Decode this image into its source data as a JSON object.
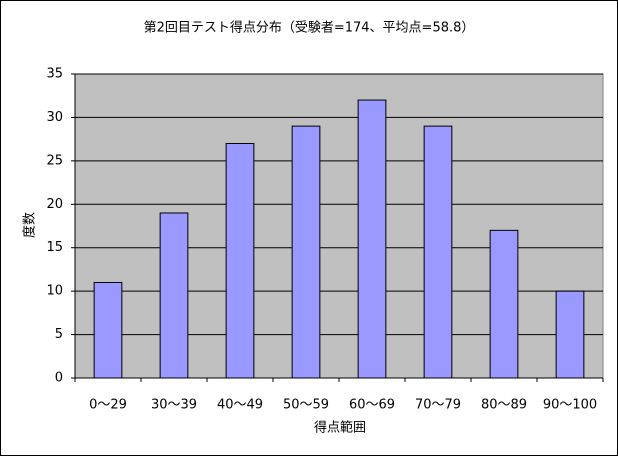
{
  "chart_data": {
    "type": "bar",
    "title": "第2回目テスト得点分布（受験者=174、平均点=58.8）",
    "x_label": "得点範囲",
    "y_label": "度数",
    "categories": [
      "0～29",
      "30～39",
      "40～49",
      "50～59",
      "60～69",
      "70～79",
      "80～89",
      "90～100"
    ],
    "values": [
      11,
      19,
      27,
      29,
      32,
      29,
      17,
      10
    ],
    "color": "#9999ff",
    "plot_background": "#c0c0c0",
    "ylim": [
      0,
      35
    ],
    "yticks": [
      0,
      5,
      10,
      15,
      20,
      25,
      30,
      35
    ],
    "grid": true
  }
}
